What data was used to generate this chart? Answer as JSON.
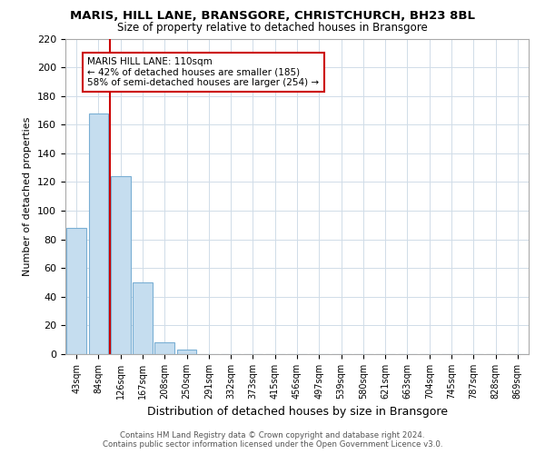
{
  "title": "MARIS, HILL LANE, BRANSGORE, CHRISTCHURCH, BH23 8BL",
  "subtitle": "Size of property relative to detached houses in Bransgore",
  "xlabel": "Distribution of detached houses by size in Bransgore",
  "ylabel": "Number of detached properties",
  "bar_labels": [
    "43sqm",
    "84sqm",
    "126sqm",
    "167sqm",
    "208sqm",
    "250sqm",
    "291sqm",
    "332sqm",
    "373sqm",
    "415sqm",
    "456sqm",
    "497sqm",
    "539sqm",
    "580sqm",
    "621sqm",
    "663sqm",
    "704sqm",
    "745sqm",
    "787sqm",
    "828sqm",
    "869sqm"
  ],
  "bar_values": [
    88,
    168,
    124,
    50,
    8,
    3,
    0,
    0,
    0,
    0,
    0,
    0,
    0,
    0,
    0,
    0,
    0,
    0,
    0,
    0,
    0
  ],
  "bar_color": "#c5ddef",
  "bar_edge_color": "#7aafd4",
  "vline_x": 1.5,
  "vline_color": "#cc0000",
  "annotation_line1": "MARIS HILL LANE: 110sqm",
  "annotation_line2": "← 42% of detached houses are smaller (185)",
  "annotation_line3": "58% of semi-detached houses are larger (254) →",
  "annotation_box_color": "#ffffff",
  "annotation_box_edge": "#cc0000",
  "ylim": [
    0,
    220
  ],
  "yticks": [
    0,
    20,
    40,
    60,
    80,
    100,
    120,
    140,
    160,
    180,
    200,
    220
  ],
  "footer_line1": "Contains HM Land Registry data © Crown copyright and database right 2024.",
  "footer_line2": "Contains public sector information licensed under the Open Government Licence v3.0.",
  "background_color": "#ffffff",
  "grid_color": "#d0dce8"
}
